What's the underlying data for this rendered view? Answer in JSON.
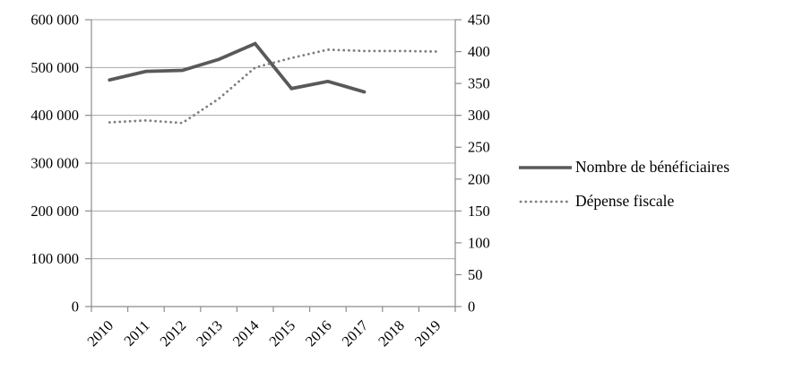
{
  "chart_data": {
    "type": "line",
    "categories": [
      "2010",
      "2011",
      "2012",
      "2013",
      "2014",
      "2015",
      "2016",
      "2017",
      "2018",
      "2019"
    ],
    "series": [
      {
        "name": "Nombre de bénéficiaires",
        "axis": "left",
        "line_style": "solid",
        "color": "#595959",
        "values": [
          474000,
          492000,
          494000,
          517000,
          550000,
          456000,
          471000,
          449000,
          null,
          null
        ]
      },
      {
        "name": "Dépense fiscale",
        "axis": "right",
        "line_style": "dotted",
        "color": "#7f7f7f",
        "values": [
          289,
          292,
          288,
          326,
          375,
          390,
          403,
          401,
          401,
          400
        ]
      }
    ],
    "left_axis": {
      "min": 0,
      "max": 600000,
      "step": 100000,
      "tick_labels": [
        "0",
        "100 000",
        "200 000",
        "300 000",
        "400 000",
        "500 000",
        "600 000"
      ]
    },
    "right_axis": {
      "min": 0,
      "max": 450,
      "step": 50,
      "tick_labels": [
        "0",
        "50",
        "100",
        "150",
        "200",
        "250",
        "300",
        "350",
        "400",
        "450"
      ]
    },
    "grid": "horizontal",
    "legend_position": "right",
    "colors": {
      "grid": "#a8a8a8",
      "axis": "#8c8c8c",
      "tick_text": "#000000",
      "background": "#ffffff"
    }
  }
}
